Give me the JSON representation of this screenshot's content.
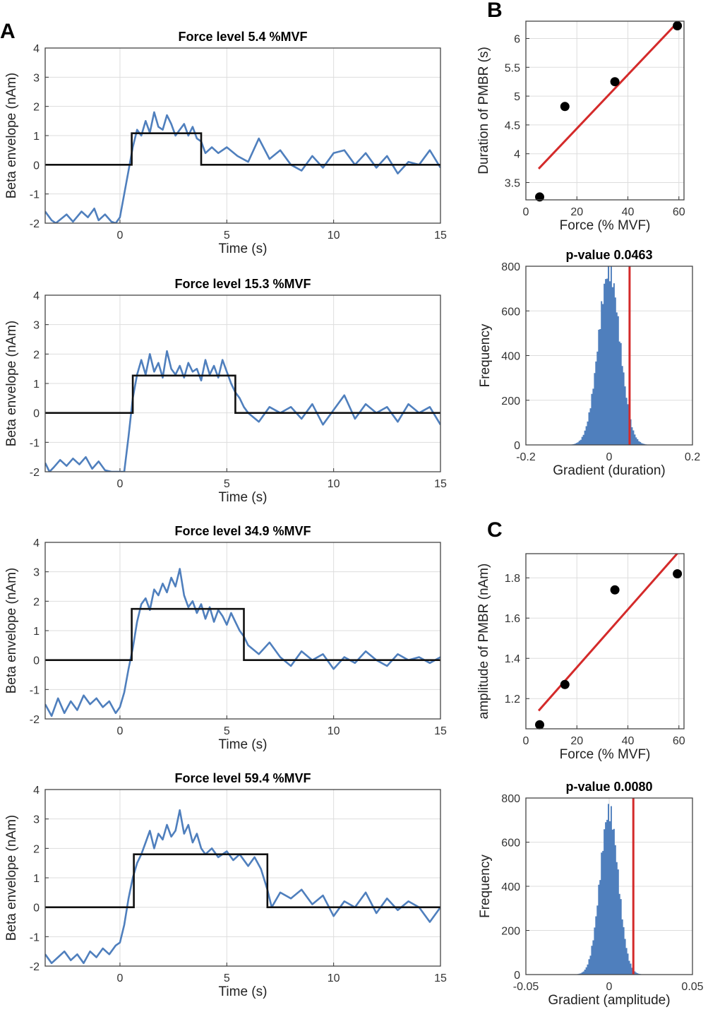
{
  "panel_labels": {
    "A": "A",
    "B": "B",
    "C": "C"
  },
  "colors": {
    "trace": "#4f7fbd",
    "step": "#111111",
    "fit": "#d42a2a",
    "hist": "#4f7fbd",
    "grid": "#dddddd"
  },
  "chart_data": [
    {
      "id": "a1",
      "type": "line",
      "title": "Force level  5.4 %MVF",
      "xlabel": "Time (s)",
      "ylabel": "Beta envelope (nAm)",
      "xlim": [
        -3.5,
        15
      ],
      "ylim": [
        -2,
        4
      ],
      "grid": true,
      "xticks": [
        0,
        5,
        10,
        15
      ],
      "yticks": [
        -2,
        -1,
        0,
        1,
        2,
        3,
        4
      ],
      "step": {
        "onset": 0.55,
        "offset": 3.8,
        "level": 1.08
      },
      "trace": {
        "x": [
          -3.5,
          -3.2,
          -3.0,
          -2.5,
          -2.2,
          -1.8,
          -1.5,
          -1.2,
          -1.0,
          -0.7,
          -0.4,
          -0.2,
          0.0,
          0.2,
          0.4,
          0.6,
          0.8,
          1.0,
          1.2,
          1.4,
          1.6,
          1.8,
          2.0,
          2.2,
          2.4,
          2.6,
          2.8,
          3.0,
          3.2,
          3.4,
          3.6,
          3.8,
          4.0,
          4.3,
          4.6,
          5.0,
          5.5,
          6.0,
          6.5,
          7.0,
          7.5,
          8.0,
          8.5,
          9.0,
          9.5,
          10.0,
          10.5,
          11.0,
          11.5,
          12.0,
          12.5,
          13.0,
          13.5,
          14.0,
          14.5,
          15.0
        ],
        "y": [
          -1.6,
          -1.9,
          -2.0,
          -1.7,
          -1.95,
          -1.6,
          -1.8,
          -1.5,
          -1.9,
          -1.7,
          -1.95,
          -2.0,
          -1.8,
          -1.0,
          -0.2,
          0.6,
          1.2,
          1.0,
          1.5,
          1.1,
          1.8,
          1.3,
          1.2,
          1.7,
          1.4,
          1.0,
          1.2,
          1.4,
          1.0,
          1.3,
          0.9,
          0.8,
          0.4,
          0.6,
          0.4,
          0.6,
          0.3,
          0.1,
          0.9,
          0.2,
          0.5,
          0.0,
          -0.2,
          0.3,
          -0.1,
          0.4,
          0.5,
          0.0,
          0.4,
          -0.1,
          0.3,
          -0.3,
          0.1,
          0.0,
          0.5,
          -0.1
        ]
      }
    },
    {
      "id": "a2",
      "type": "line",
      "title": "Force level  15.3 %MVF",
      "xlabel": "Time (s)",
      "ylabel": "Beta envelope (nAm)",
      "xlim": [
        -3.5,
        15
      ],
      "ylim": [
        -2,
        4
      ],
      "grid": true,
      "xticks": [
        0,
        5,
        10,
        15
      ],
      "yticks": [
        -2,
        -1,
        0,
        1,
        2,
        3,
        4
      ],
      "step": {
        "onset": 0.6,
        "offset": 5.4,
        "level": 1.27
      },
      "trace": {
        "x": [
          -3.5,
          -3.3,
          -3.1,
          -2.8,
          -2.5,
          -2.2,
          -1.9,
          -1.6,
          -1.3,
          -1.0,
          -0.7,
          -0.4,
          0.2,
          0.4,
          0.6,
          0.8,
          1.0,
          1.2,
          1.4,
          1.6,
          1.8,
          2.0,
          2.2,
          2.4,
          2.6,
          2.8,
          3.0,
          3.2,
          3.4,
          3.6,
          3.8,
          4.0,
          4.2,
          4.4,
          4.6,
          4.8,
          5.0,
          5.2,
          5.4,
          5.6,
          5.8,
          6.0,
          6.5,
          7.0,
          7.5,
          8.0,
          8.5,
          9.0,
          9.5,
          10.0,
          10.5,
          11.0,
          11.5,
          12.0,
          12.5,
          13.0,
          13.5,
          14.0,
          14.5,
          15.0
        ],
        "y": [
          -1.7,
          -2.0,
          -1.85,
          -1.6,
          -1.8,
          -1.55,
          -1.75,
          -1.5,
          -1.9,
          -1.65,
          -1.95,
          -2.0,
          -2.0,
          -0.8,
          0.5,
          1.3,
          1.8,
          1.3,
          2.0,
          1.4,
          1.7,
          1.2,
          2.1,
          1.5,
          1.3,
          1.6,
          1.2,
          1.7,
          1.4,
          1.5,
          1.1,
          1.8,
          1.3,
          1.6,
          1.2,
          1.8,
          1.4,
          1.0,
          0.7,
          0.5,
          0.2,
          0.0,
          -0.3,
          0.2,
          0.0,
          0.2,
          -0.2,
          0.3,
          -0.4,
          0.1,
          0.6,
          -0.2,
          0.3,
          0.0,
          0.2,
          -0.3,
          0.3,
          0.0,
          0.2,
          -0.4
        ]
      }
    },
    {
      "id": "a3",
      "type": "line",
      "title": "Force level  34.9 %MVF",
      "xlabel": "Time (s)",
      "ylabel": "Beta envelope (nAm)",
      "xlim": [
        -3.5,
        15
      ],
      "ylim": [
        -2,
        4
      ],
      "grid": true,
      "xticks": [
        0,
        5,
        10,
        15
      ],
      "yticks": [
        -2,
        -1,
        0,
        1,
        2,
        3,
        4
      ],
      "step": {
        "onset": 0.55,
        "offset": 5.8,
        "level": 1.74
      },
      "trace": {
        "x": [
          -3.5,
          -3.2,
          -2.9,
          -2.6,
          -2.3,
          -2.0,
          -1.7,
          -1.4,
          -1.1,
          -0.8,
          -0.5,
          -0.2,
          0.0,
          0.2,
          0.4,
          0.6,
          0.8,
          1.0,
          1.2,
          1.4,
          1.6,
          1.8,
          2.0,
          2.2,
          2.4,
          2.6,
          2.8,
          3.0,
          3.2,
          3.4,
          3.6,
          3.8,
          4.0,
          4.2,
          4.4,
          4.6,
          4.8,
          5.0,
          5.2,
          5.4,
          5.6,
          5.8,
          6.0,
          6.5,
          7.0,
          7.5,
          8.0,
          8.5,
          9.0,
          9.5,
          10.0,
          10.5,
          11.0,
          11.5,
          12.0,
          12.5,
          13.0,
          13.5,
          14.0,
          14.5,
          15.0
        ],
        "y": [
          -1.5,
          -1.9,
          -1.3,
          -1.8,
          -1.4,
          -1.7,
          -1.2,
          -1.5,
          -1.3,
          -1.6,
          -1.4,
          -1.8,
          -1.6,
          -1.1,
          -0.3,
          0.4,
          1.3,
          1.9,
          2.1,
          1.7,
          2.4,
          2.2,
          2.6,
          2.3,
          2.8,
          2.5,
          3.1,
          2.2,
          1.8,
          2.0,
          1.6,
          1.9,
          1.4,
          1.8,
          1.3,
          1.7,
          1.5,
          1.2,
          1.6,
          1.3,
          1.0,
          0.8,
          0.5,
          0.2,
          0.6,
          0.1,
          -0.2,
          0.3,
          0.0,
          0.2,
          -0.3,
          0.1,
          -0.1,
          0.3,
          0.0,
          -0.2,
          0.2,
          0.0,
          0.1,
          -0.1,
          0.1
        ]
      }
    },
    {
      "id": "a4",
      "type": "line",
      "title": "Force level  59.4 %MVF",
      "xlabel": "Time (s)",
      "ylabel": "Beta envelope (nAm)",
      "xlim": [
        -3.5,
        15
      ],
      "ylim": [
        -2,
        4
      ],
      "grid": true,
      "xticks": [
        0,
        5,
        10,
        15
      ],
      "yticks": [
        -2,
        -1,
        0,
        1,
        2,
        3,
        4
      ],
      "step": {
        "onset": 0.65,
        "offset": 6.9,
        "level": 1.8
      },
      "trace": {
        "x": [
          -3.5,
          -3.2,
          -2.9,
          -2.6,
          -2.3,
          -2.0,
          -1.7,
          -1.4,
          -1.1,
          -0.8,
          -0.5,
          -0.2,
          0.0,
          0.2,
          0.4,
          0.6,
          0.8,
          1.0,
          1.2,
          1.4,
          1.6,
          1.8,
          2.0,
          2.2,
          2.4,
          2.6,
          2.8,
          3.0,
          3.2,
          3.4,
          3.6,
          3.8,
          4.0,
          4.3,
          4.6,
          5.0,
          5.3,
          5.6,
          6.0,
          6.3,
          6.6,
          6.9,
          7.1,
          7.5,
          8.0,
          8.5,
          9.0,
          9.5,
          10.0,
          10.5,
          11.0,
          11.5,
          12.0,
          12.5,
          13.0,
          13.5,
          14.0,
          14.5,
          15.0
        ],
        "y": [
          -1.6,
          -1.9,
          -1.7,
          -1.5,
          -1.8,
          -1.6,
          -1.9,
          -1.5,
          -1.7,
          -1.4,
          -1.6,
          -1.3,
          -1.2,
          -0.6,
          0.3,
          1.0,
          1.5,
          1.8,
          2.2,
          2.6,
          2.0,
          2.5,
          2.3,
          2.8,
          2.4,
          2.6,
          3.3,
          2.5,
          2.8,
          2.2,
          2.5,
          2.0,
          1.8,
          2.0,
          1.7,
          1.9,
          1.6,
          1.8,
          1.4,
          1.7,
          1.3,
          0.6,
          0.0,
          0.5,
          0.3,
          0.6,
          0.1,
          0.4,
          -0.3,
          0.2,
          0.0,
          0.5,
          -0.2,
          0.3,
          -0.1,
          0.2,
          0.0,
          -0.5,
          0.0
        ]
      }
    },
    {
      "id": "b1",
      "type": "scatter",
      "xlabel": "Force (% MVF)",
      "ylabel": "Duration of PMBR (s)",
      "xlim": [
        0,
        62
      ],
      "ylim": [
        3.2,
        6.3
      ],
      "grid": true,
      "xticks": [
        0,
        20,
        40,
        60
      ],
      "yticks": [
        3.5,
        4,
        4.5,
        5,
        5.5,
        6
      ],
      "points": {
        "x": [
          5.4,
          15.3,
          34.9,
          59.4
        ],
        "y": [
          3.25,
          4.82,
          5.25,
          6.22
        ]
      },
      "fit": {
        "x": [
          5,
          61
        ],
        "y": [
          3.74,
          6.35
        ]
      }
    },
    {
      "id": "b2",
      "type": "histogram",
      "title": "p-value 0.0463",
      "xlabel": "Gradient (duration)",
      "ylabel": "Frequency",
      "xlim": [
        -0.2,
        0.2
      ],
      "ylim": [
        0,
        800
      ],
      "grid": true,
      "xticks": [
        -0.2,
        0,
        0.2
      ],
      "yticks": [
        0,
        200,
        400,
        600,
        800
      ],
      "distribution": {
        "mean": 0.0,
        "sd": 0.026,
        "peak": 780
      },
      "threshold": 0.049
    },
    {
      "id": "c1",
      "type": "scatter",
      "xlabel": "Force (% MVF)",
      "ylabel": "amplitude of PMBR (nAm)",
      "xlim": [
        0,
        62
      ],
      "ylim": [
        1.05,
        1.92
      ],
      "grid": true,
      "xticks": [
        0,
        20,
        40,
        60
      ],
      "yticks": [
        1.2,
        1.4,
        1.6,
        1.8
      ],
      "points": {
        "x": [
          5.4,
          15.3,
          34.9,
          59.4
        ],
        "y": [
          1.07,
          1.27,
          1.74,
          1.82
        ]
      },
      "fit": {
        "x": [
          5,
          60
        ],
        "y": [
          1.14,
          1.93
        ]
      }
    },
    {
      "id": "c2",
      "type": "histogram",
      "title": "p-value 0.0080",
      "xlabel": "Gradient (amplitude)",
      "ylabel": "Frequency",
      "xlim": [
        -0.05,
        0.05
      ],
      "ylim": [
        0,
        800
      ],
      "grid": true,
      "xticks": [
        -0.05,
        0,
        0.05
      ],
      "yticks": [
        0,
        200,
        400,
        600,
        800
      ],
      "distribution": {
        "mean": 0.0,
        "sd": 0.0055,
        "peak": 740
      },
      "threshold": 0.0145
    }
  ]
}
